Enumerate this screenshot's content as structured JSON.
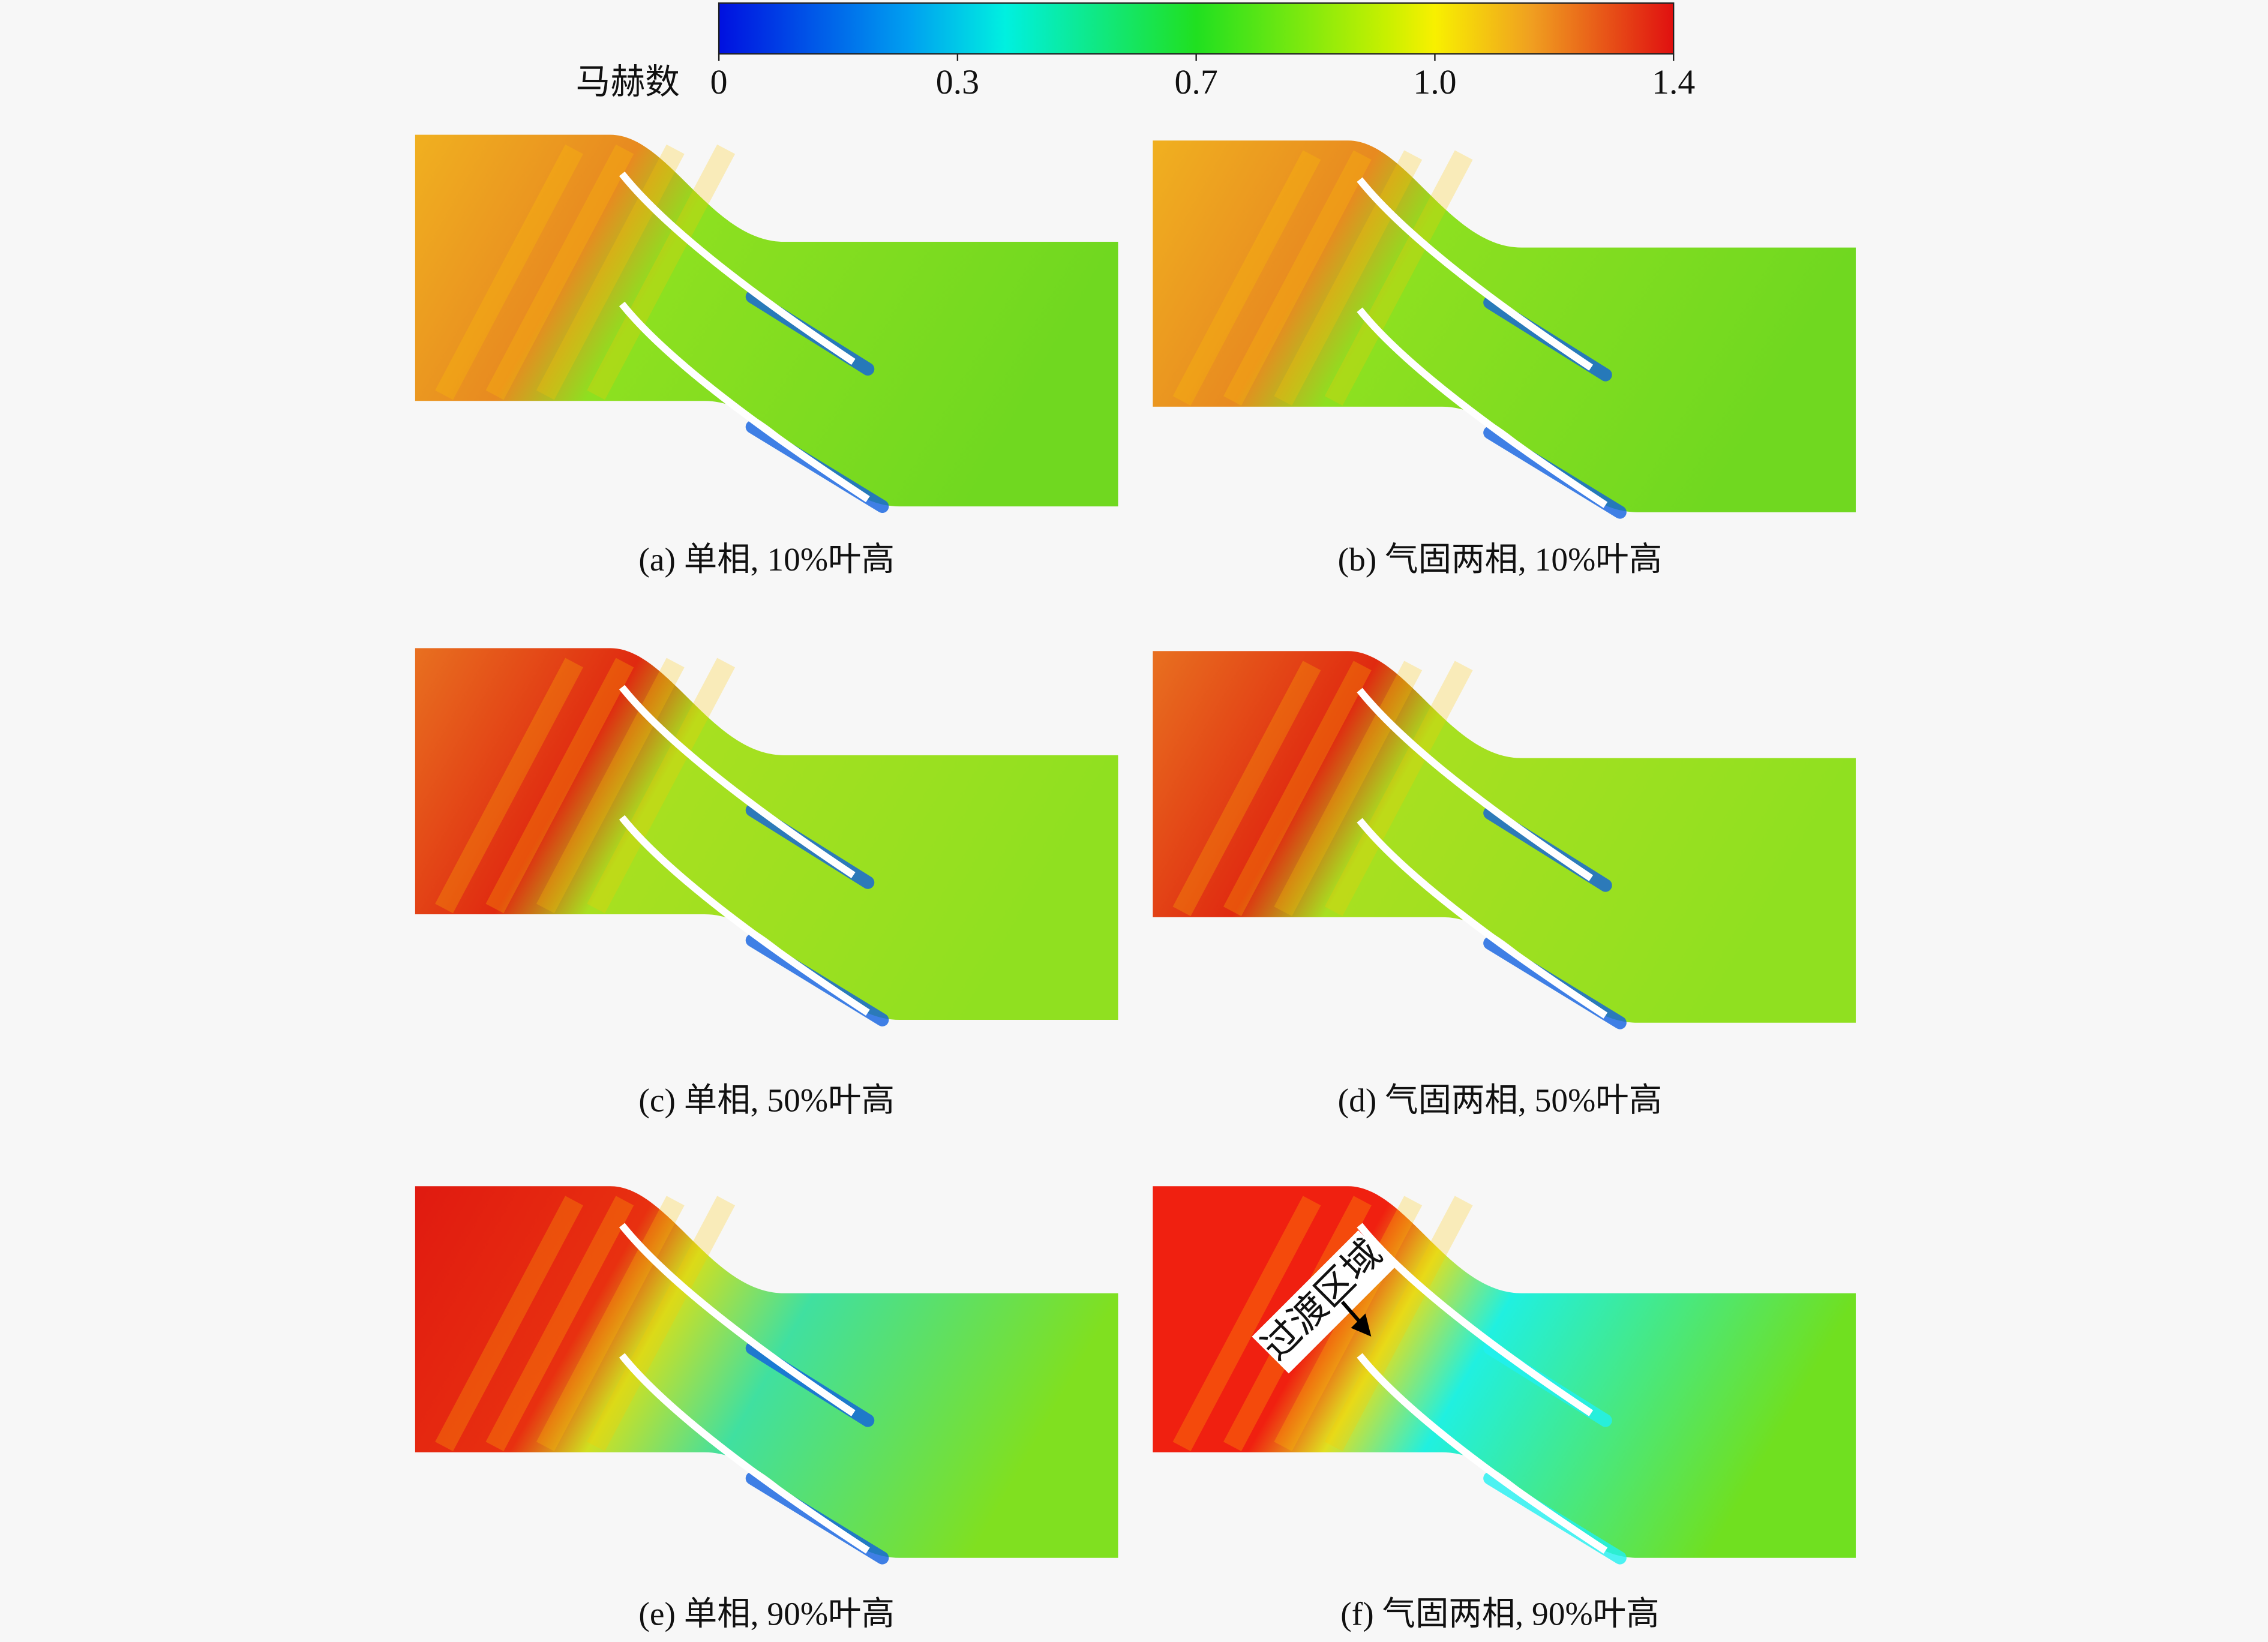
{
  "colorbar": {
    "label": "马赫数",
    "ticks": [
      "0",
      "0.3",
      "0.7",
      "1.0",
      "1.4"
    ]
  },
  "panels": [
    {
      "caption": "(a) 单相, 10%叶高"
    },
    {
      "caption": "(b) 气固两相, 10%叶高"
    },
    {
      "caption": "(c) 单相, 50%叶高"
    },
    {
      "caption": "(d) 气固两相, 50%叶高"
    },
    {
      "caption": "(e) 单相, 90%叶高"
    },
    {
      "caption": "(f) 气固两相, 90%叶高"
    }
  ],
  "annotation": "过渡区域"
}
